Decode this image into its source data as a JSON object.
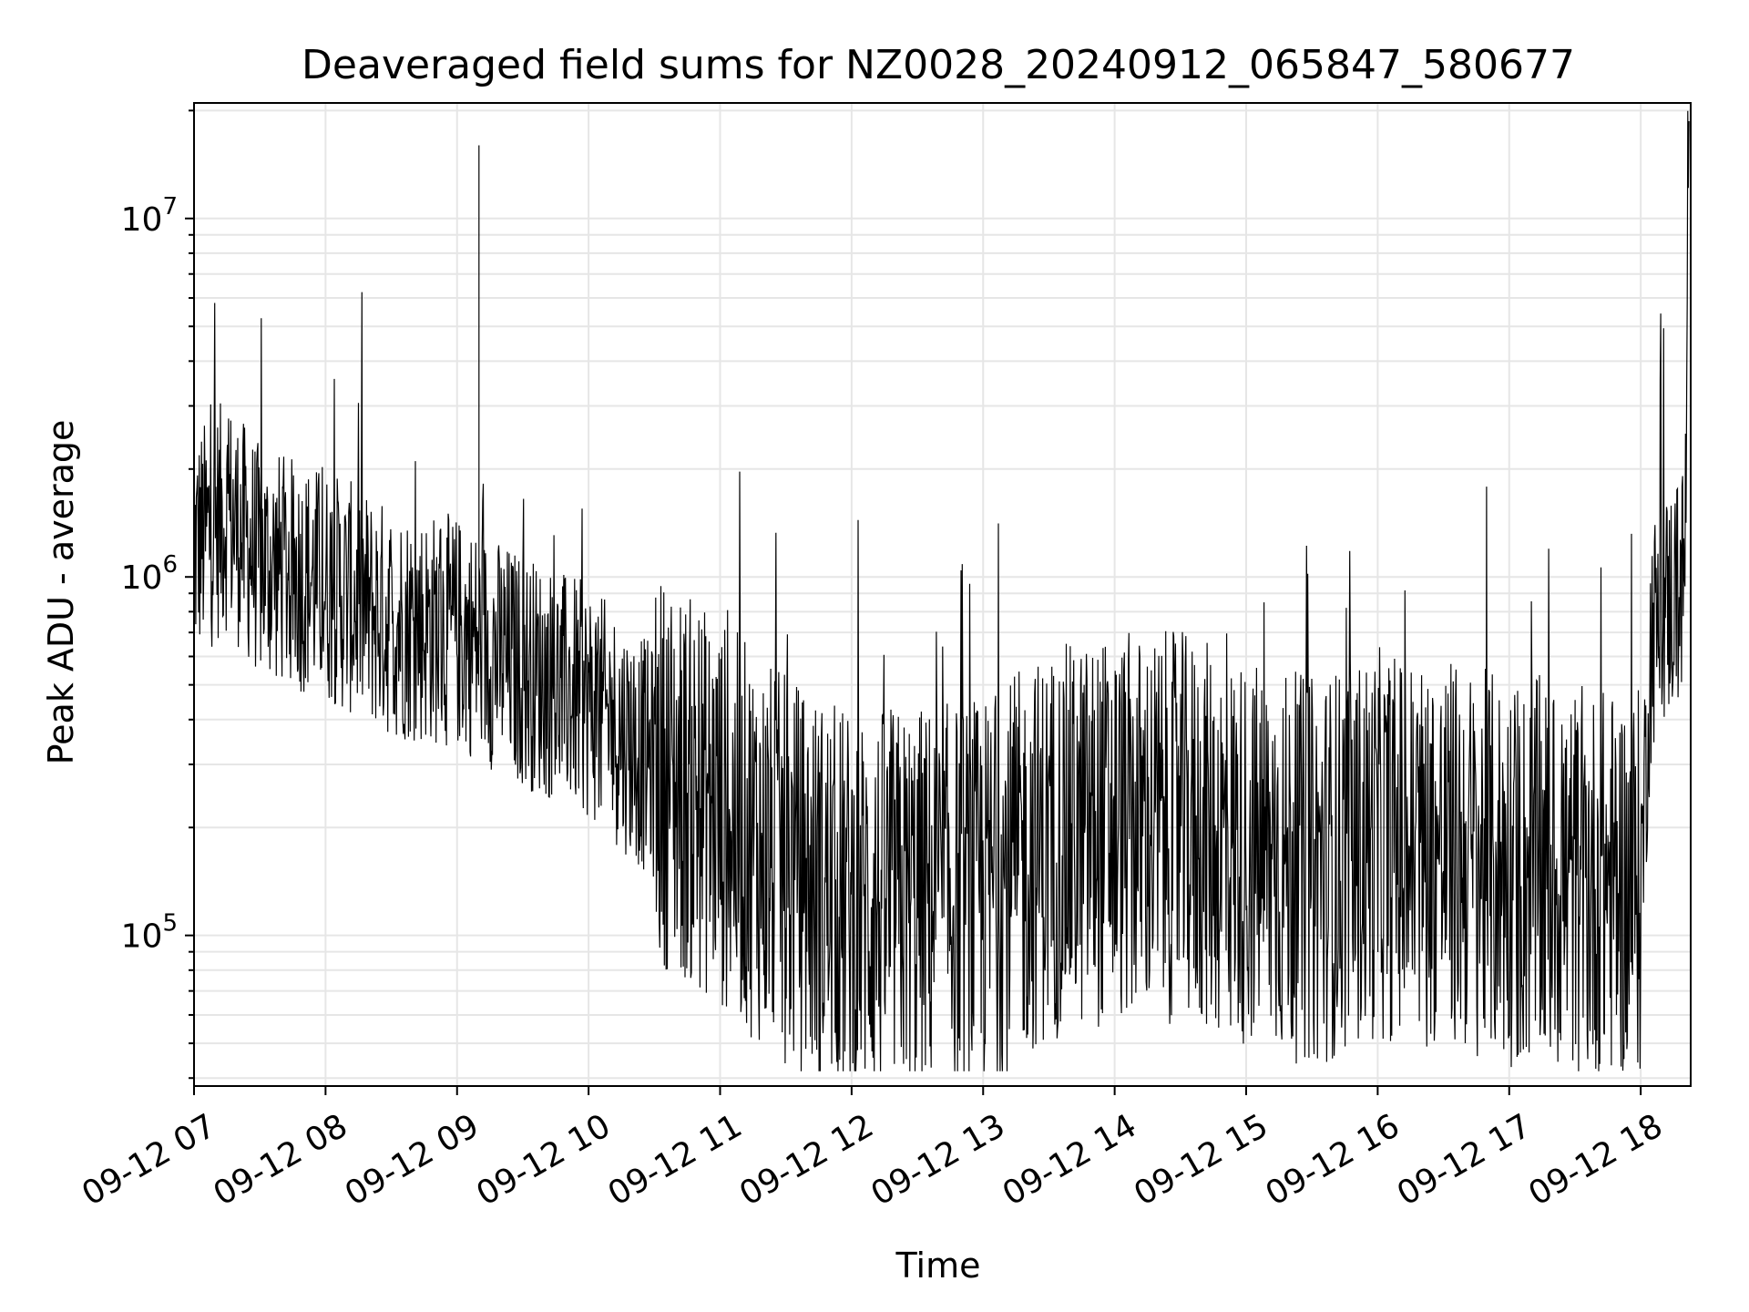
{
  "chart_data": {
    "type": "line",
    "title": "Deaveraged field sums for NZ0028_20240912_065847_580677",
    "xlabel": "Time",
    "ylabel": "Peak ADU - average",
    "yscale": "log",
    "ylim": [
      38000,
      21000000
    ],
    "xlim_hours": [
      7.0,
      18.38
    ],
    "grid": true,
    "line_color": "#000000",
    "grid_color": "#e6e6e6",
    "x_tick_labels": [
      "09-12 07",
      "09-12 08",
      "09-12 09",
      "09-12 10",
      "09-12 11",
      "09-12 12",
      "09-12 13",
      "09-12 14",
      "09-12 15",
      "09-12 16",
      "09-12 17",
      "09-12 18"
    ],
    "y_ticks": [
      {
        "base": "10",
        "exp": "5"
      },
      {
        "base": "10",
        "exp": "6"
      },
      {
        "base": "10",
        "exp": "7"
      }
    ],
    "series": [
      {
        "points": [
          {
            "x": "09-12 07:00",
            "y": 1200000
          },
          {
            "x": "09-12 07:15",
            "y": 1500000
          },
          {
            "x": "09-12 07:30",
            "y": 1100000
          },
          {
            "x": "09-12 08:00",
            "y": 950000
          },
          {
            "x": "09-12 08:30",
            "y": 750000
          },
          {
            "x": "09-12 09:00",
            "y": 700000
          },
          {
            "x": "09-12 09:10",
            "y": 16000000
          },
          {
            "x": "09-12 09:30",
            "y": 550000
          },
          {
            "x": "09-12 10:00",
            "y": 450000
          },
          {
            "x": "09-12 10:30",
            "y": 300000
          },
          {
            "x": "09-12 11:00",
            "y": 220000
          },
          {
            "x": "09-12 11:30",
            "y": 150000
          },
          {
            "x": "09-12 12:00",
            "y": 120000
          },
          {
            "x": "09-12 12:30",
            "y": 125000
          },
          {
            "x": "09-12 13:00",
            "y": 130000
          },
          {
            "x": "09-12 13:30",
            "y": 180000
          },
          {
            "x": "09-12 14:00",
            "y": 200000
          },
          {
            "x": "09-12 14:30",
            "y": 200000
          },
          {
            "x": "09-12 15:00",
            "y": 170000
          },
          {
            "x": "09-12 15:30",
            "y": 150000
          },
          {
            "x": "09-12 16:00",
            "y": 180000
          },
          {
            "x": "09-12 16:30",
            "y": 170000
          },
          {
            "x": "09-12 17:00",
            "y": 150000
          },
          {
            "x": "09-12 17:30",
            "y": 140000
          },
          {
            "x": "09-12 18:00",
            "y": 140000
          },
          {
            "x": "09-12 18:05",
            "y": 700000
          },
          {
            "x": "09-12 18:20",
            "y": 1000000
          },
          {
            "x": "09-12 18:22",
            "y": 9000000
          }
        ]
      }
    ]
  }
}
